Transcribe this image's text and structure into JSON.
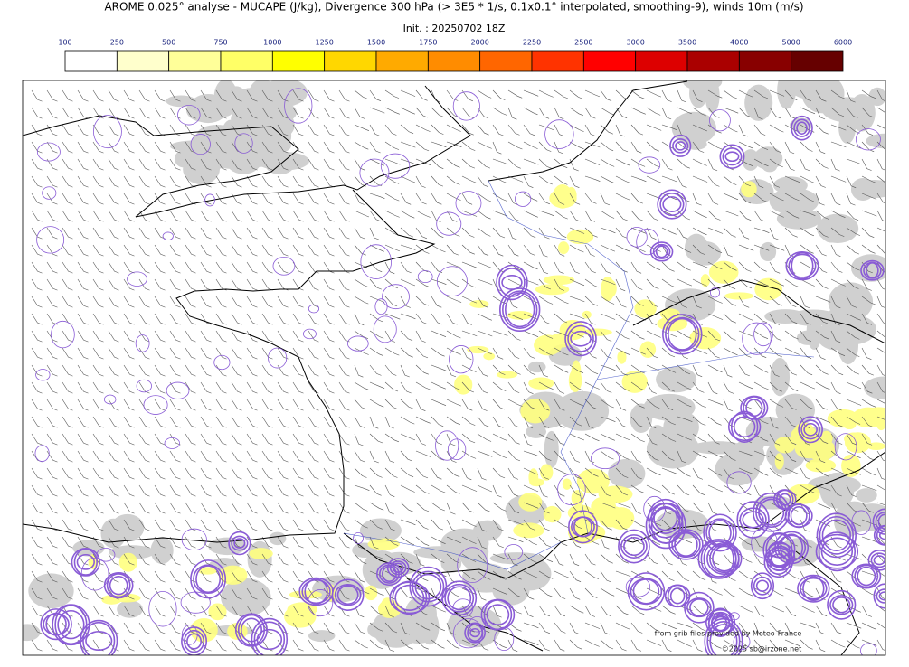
{
  "header": {
    "title": "AROME 0.025° analyse - MUCAPE (J/kg), Divergence 300 hPa (> 3E5 * 1/s, 0.1x0.1° interpolated, smoothing-9), winds 10m (m/s)",
    "init": "Init. : 20250702 18Z"
  },
  "colorbar": {
    "ticks": [
      100,
      250,
      500,
      750,
      1000,
      1250,
      1500,
      1750,
      2000,
      2250,
      2500,
      3000,
      3500,
      4000,
      5000,
      6000
    ],
    "colors": [
      "#ffffff",
      "#ffffcc",
      "#ffff99",
      "#ffff66",
      "#ffff00",
      "#ffd700",
      "#ffaa00",
      "#ff8c00",
      "#ff6600",
      "#ff3300",
      "#ff0000",
      "#dd0000",
      "#aa0000",
      "#880000",
      "#660000"
    ]
  },
  "credits": {
    "source": "from grib files provided by Meteo-France",
    "copyright": "©2025 sb@irzone.net"
  }
}
